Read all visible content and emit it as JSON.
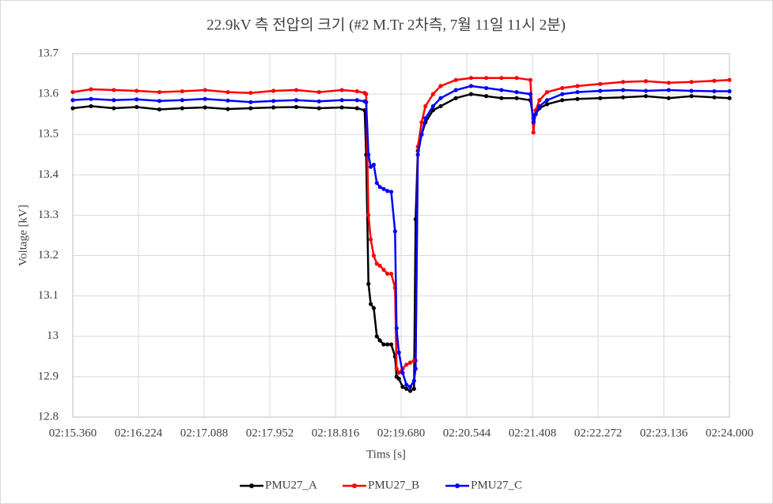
{
  "chart_data": {
    "type": "line",
    "title": "22.9kV 측 전압의 크기 (#2 M.Tr 2차측, 7월 11일 11시 2분)",
    "x_label": "Tims [s]",
    "y_label": "Voltage [kV]",
    "x": [
      135.36,
      135.6,
      135.9,
      136.2,
      136.5,
      136.8,
      137.1,
      137.4,
      137.7,
      138.0,
      138.3,
      138.6,
      138.9,
      139.1,
      139.2,
      139.22,
      139.25,
      139.28,
      139.32,
      139.36,
      139.4,
      139.45,
      139.5,
      139.55,
      139.6,
      139.62,
      139.65,
      139.7,
      139.75,
      139.8,
      139.85,
      139.87,
      139.9,
      139.95,
      140.0,
      140.1,
      140.2,
      140.4,
      140.6,
      140.8,
      141.0,
      141.2,
      141.38,
      141.42,
      141.45,
      141.5,
      141.6,
      141.8,
      142.0,
      142.3,
      142.6,
      142.9,
      143.2,
      143.5,
      143.8,
      144.0
    ],
    "series": [
      {
        "name": "PMU27_A",
        "color": "#000000",
        "values": [
          13.565,
          13.57,
          13.565,
          13.568,
          13.562,
          13.565,
          13.567,
          13.563,
          13.565,
          13.567,
          13.568,
          13.565,
          13.567,
          13.565,
          13.56,
          13.45,
          13.13,
          13.08,
          13.07,
          13.0,
          12.99,
          12.98,
          12.98,
          12.98,
          12.95,
          12.9,
          12.895,
          12.875,
          12.87,
          12.865,
          12.87,
          13.29,
          13.46,
          13.5,
          13.53,
          13.56,
          13.57,
          13.59,
          13.6,
          13.595,
          13.59,
          13.59,
          13.585,
          13.54,
          13.55,
          13.565,
          13.575,
          13.585,
          13.588,
          13.59,
          13.592,
          13.595,
          13.59,
          13.595,
          13.592,
          13.59
        ]
      },
      {
        "name": "PMU27_B",
        "color": "#ff0000",
        "values": [
          13.605,
          13.612,
          13.61,
          13.608,
          13.605,
          13.607,
          13.61,
          13.605,
          13.603,
          13.608,
          13.61,
          13.605,
          13.61,
          13.607,
          13.603,
          13.6,
          13.3,
          13.24,
          13.2,
          13.18,
          13.175,
          13.165,
          13.155,
          13.155,
          13.12,
          12.92,
          12.91,
          12.92,
          12.93,
          12.935,
          12.94,
          12.94,
          13.47,
          13.53,
          13.57,
          13.6,
          13.62,
          13.635,
          13.64,
          13.64,
          13.64,
          13.64,
          13.635,
          13.505,
          13.56,
          13.585,
          13.605,
          13.615,
          13.62,
          13.625,
          13.63,
          13.632,
          13.628,
          13.63,
          13.633,
          13.635
        ]
      },
      {
        "name": "PMU27_C",
        "color": "#0000ff",
        "values": [
          13.585,
          13.588,
          13.585,
          13.587,
          13.583,
          13.585,
          13.588,
          13.584,
          13.58,
          13.583,
          13.585,
          13.582,
          13.585,
          13.585,
          13.582,
          13.58,
          13.45,
          13.42,
          13.425,
          13.38,
          13.37,
          13.365,
          13.36,
          13.358,
          13.26,
          13.02,
          12.96,
          12.91,
          12.88,
          12.875,
          12.89,
          12.92,
          13.45,
          13.5,
          13.54,
          13.57,
          13.59,
          13.61,
          13.62,
          13.615,
          13.61,
          13.605,
          13.6,
          13.53,
          13.55,
          13.57,
          13.585,
          13.6,
          13.605,
          13.608,
          13.61,
          13.608,
          13.61,
          13.608,
          13.607,
          13.607
        ]
      }
    ],
    "xlim": [
      135.36,
      144.0
    ],
    "xticks": [
      {
        "value": 135.36,
        "label": "02:15.360"
      },
      {
        "value": 136.224,
        "label": "02:16.224"
      },
      {
        "value": 137.088,
        "label": "02:17.088"
      },
      {
        "value": 137.952,
        "label": "02:17.952"
      },
      {
        "value": 138.816,
        "label": "02:18.816"
      },
      {
        "value": 139.68,
        "label": "02:19.680"
      },
      {
        "value": 140.544,
        "label": "02:20.544"
      },
      {
        "value": 141.408,
        "label": "02:21.408"
      },
      {
        "value": 142.272,
        "label": "02:22.272"
      },
      {
        "value": 143.136,
        "label": "02:23.136"
      },
      {
        "value": 144.0,
        "label": "02:24.000"
      }
    ],
    "ylim": [
      12.8,
      13.7
    ],
    "yticks": [
      12.8,
      12.9,
      13,
      13.1,
      13.2,
      13.3,
      13.4,
      13.5,
      13.6,
      13.7
    ],
    "grid": true,
    "legend": "bottom"
  }
}
